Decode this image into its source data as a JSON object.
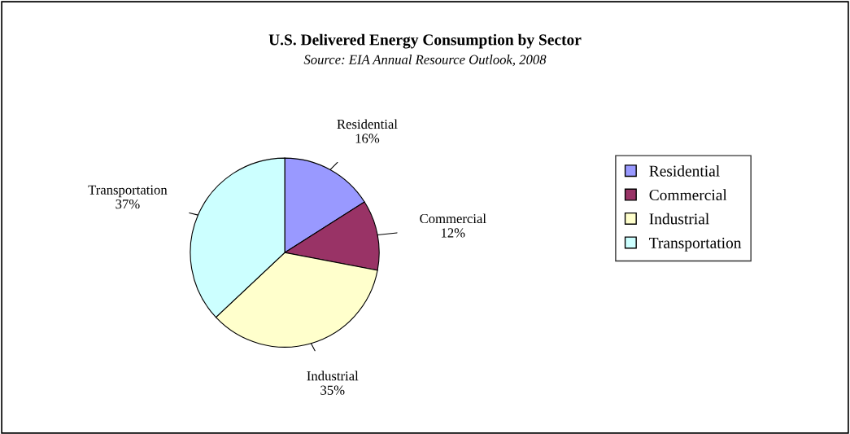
{
  "chart_data": {
    "type": "pie",
    "title": "U.S. Delivered Energy Consumption by Sector",
    "subtitle": "Source: EIA Annual Resource Outlook, 2008",
    "categories": [
      "Residential",
      "Commercial",
      "Industrial",
      "Transportation"
    ],
    "values": [
      16,
      12,
      35,
      37
    ],
    "value_labels": [
      "16%",
      "12%",
      "35%",
      "37%"
    ],
    "colors": [
      "#9999ff",
      "#993366",
      "#ffffcc",
      "#ccffff"
    ],
    "legend": "right"
  }
}
